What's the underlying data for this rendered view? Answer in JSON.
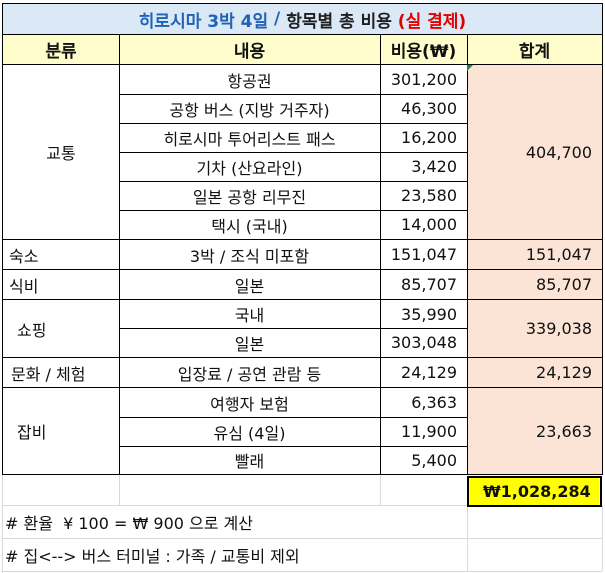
{
  "title": {
    "main": "히로시마 3박 4일",
    "sep": " / ",
    "mid": "항목별 총 비용 ",
    "red": "(실 결제)"
  },
  "headers": {
    "category": "분류",
    "content": "내용",
    "cost": "비용(₩)",
    "total": "합계"
  },
  "groups": {
    "transport": {
      "name": "교통",
      "total": "404,700",
      "items": [
        {
          "content": "항공권",
          "cost": "301,200"
        },
        {
          "content": "공항 버스 (지방 거주자)",
          "cost": "46,300"
        },
        {
          "content": "히로시마 투어리스트 패스",
          "cost": "16,200"
        },
        {
          "content": "기차 (산요라인)",
          "cost": "3,420"
        },
        {
          "content": "일본 공항 리무진",
          "cost": "23,580"
        },
        {
          "content": "택시 (국내)",
          "cost": "14,000"
        }
      ]
    },
    "lodging": {
      "name": "숙소",
      "total": "151,047",
      "items": [
        {
          "content": "3박 / 조식 미포함",
          "cost": "151,047"
        }
      ]
    },
    "food": {
      "name": "식비",
      "total": "85,707",
      "items": [
        {
          "content": "일본",
          "cost": "85,707"
        }
      ]
    },
    "shopping": {
      "name": "쇼핑",
      "total": "339,038",
      "items": [
        {
          "content": "국내",
          "cost": "35,990"
        },
        {
          "content": "일본",
          "cost": "303,048"
        }
      ]
    },
    "culture": {
      "name": "문화 / 체험",
      "total": "24,129",
      "items": [
        {
          "content": "입장료 / 공연 관람 등",
          "cost": "24,129"
        }
      ]
    },
    "misc": {
      "name": "잡비",
      "total": "23,663",
      "items": [
        {
          "content": "여행자 보험",
          "cost": "6,363"
        },
        {
          "content": "유심 (4일)",
          "cost": "11,900"
        },
        {
          "content": "빨래",
          "cost": "5,400"
        }
      ]
    }
  },
  "grand_total": {
    "symbol": "₩",
    "value": "1,028,284"
  },
  "notes": [
    "# 환율  ¥ 100 = ₩ 900 으로 계산",
    "# 집<--> 버스 터미널 : 가족 / 교통비 제외"
  ],
  "colors": {
    "title_bg": "#dbe9f6",
    "header_bg": "#fffdcb",
    "total_column_bg": "#fbe4d6",
    "grand_total_bg": "#ffff00",
    "title_blue": "#1f62b5",
    "title_red": "#e00000"
  }
}
